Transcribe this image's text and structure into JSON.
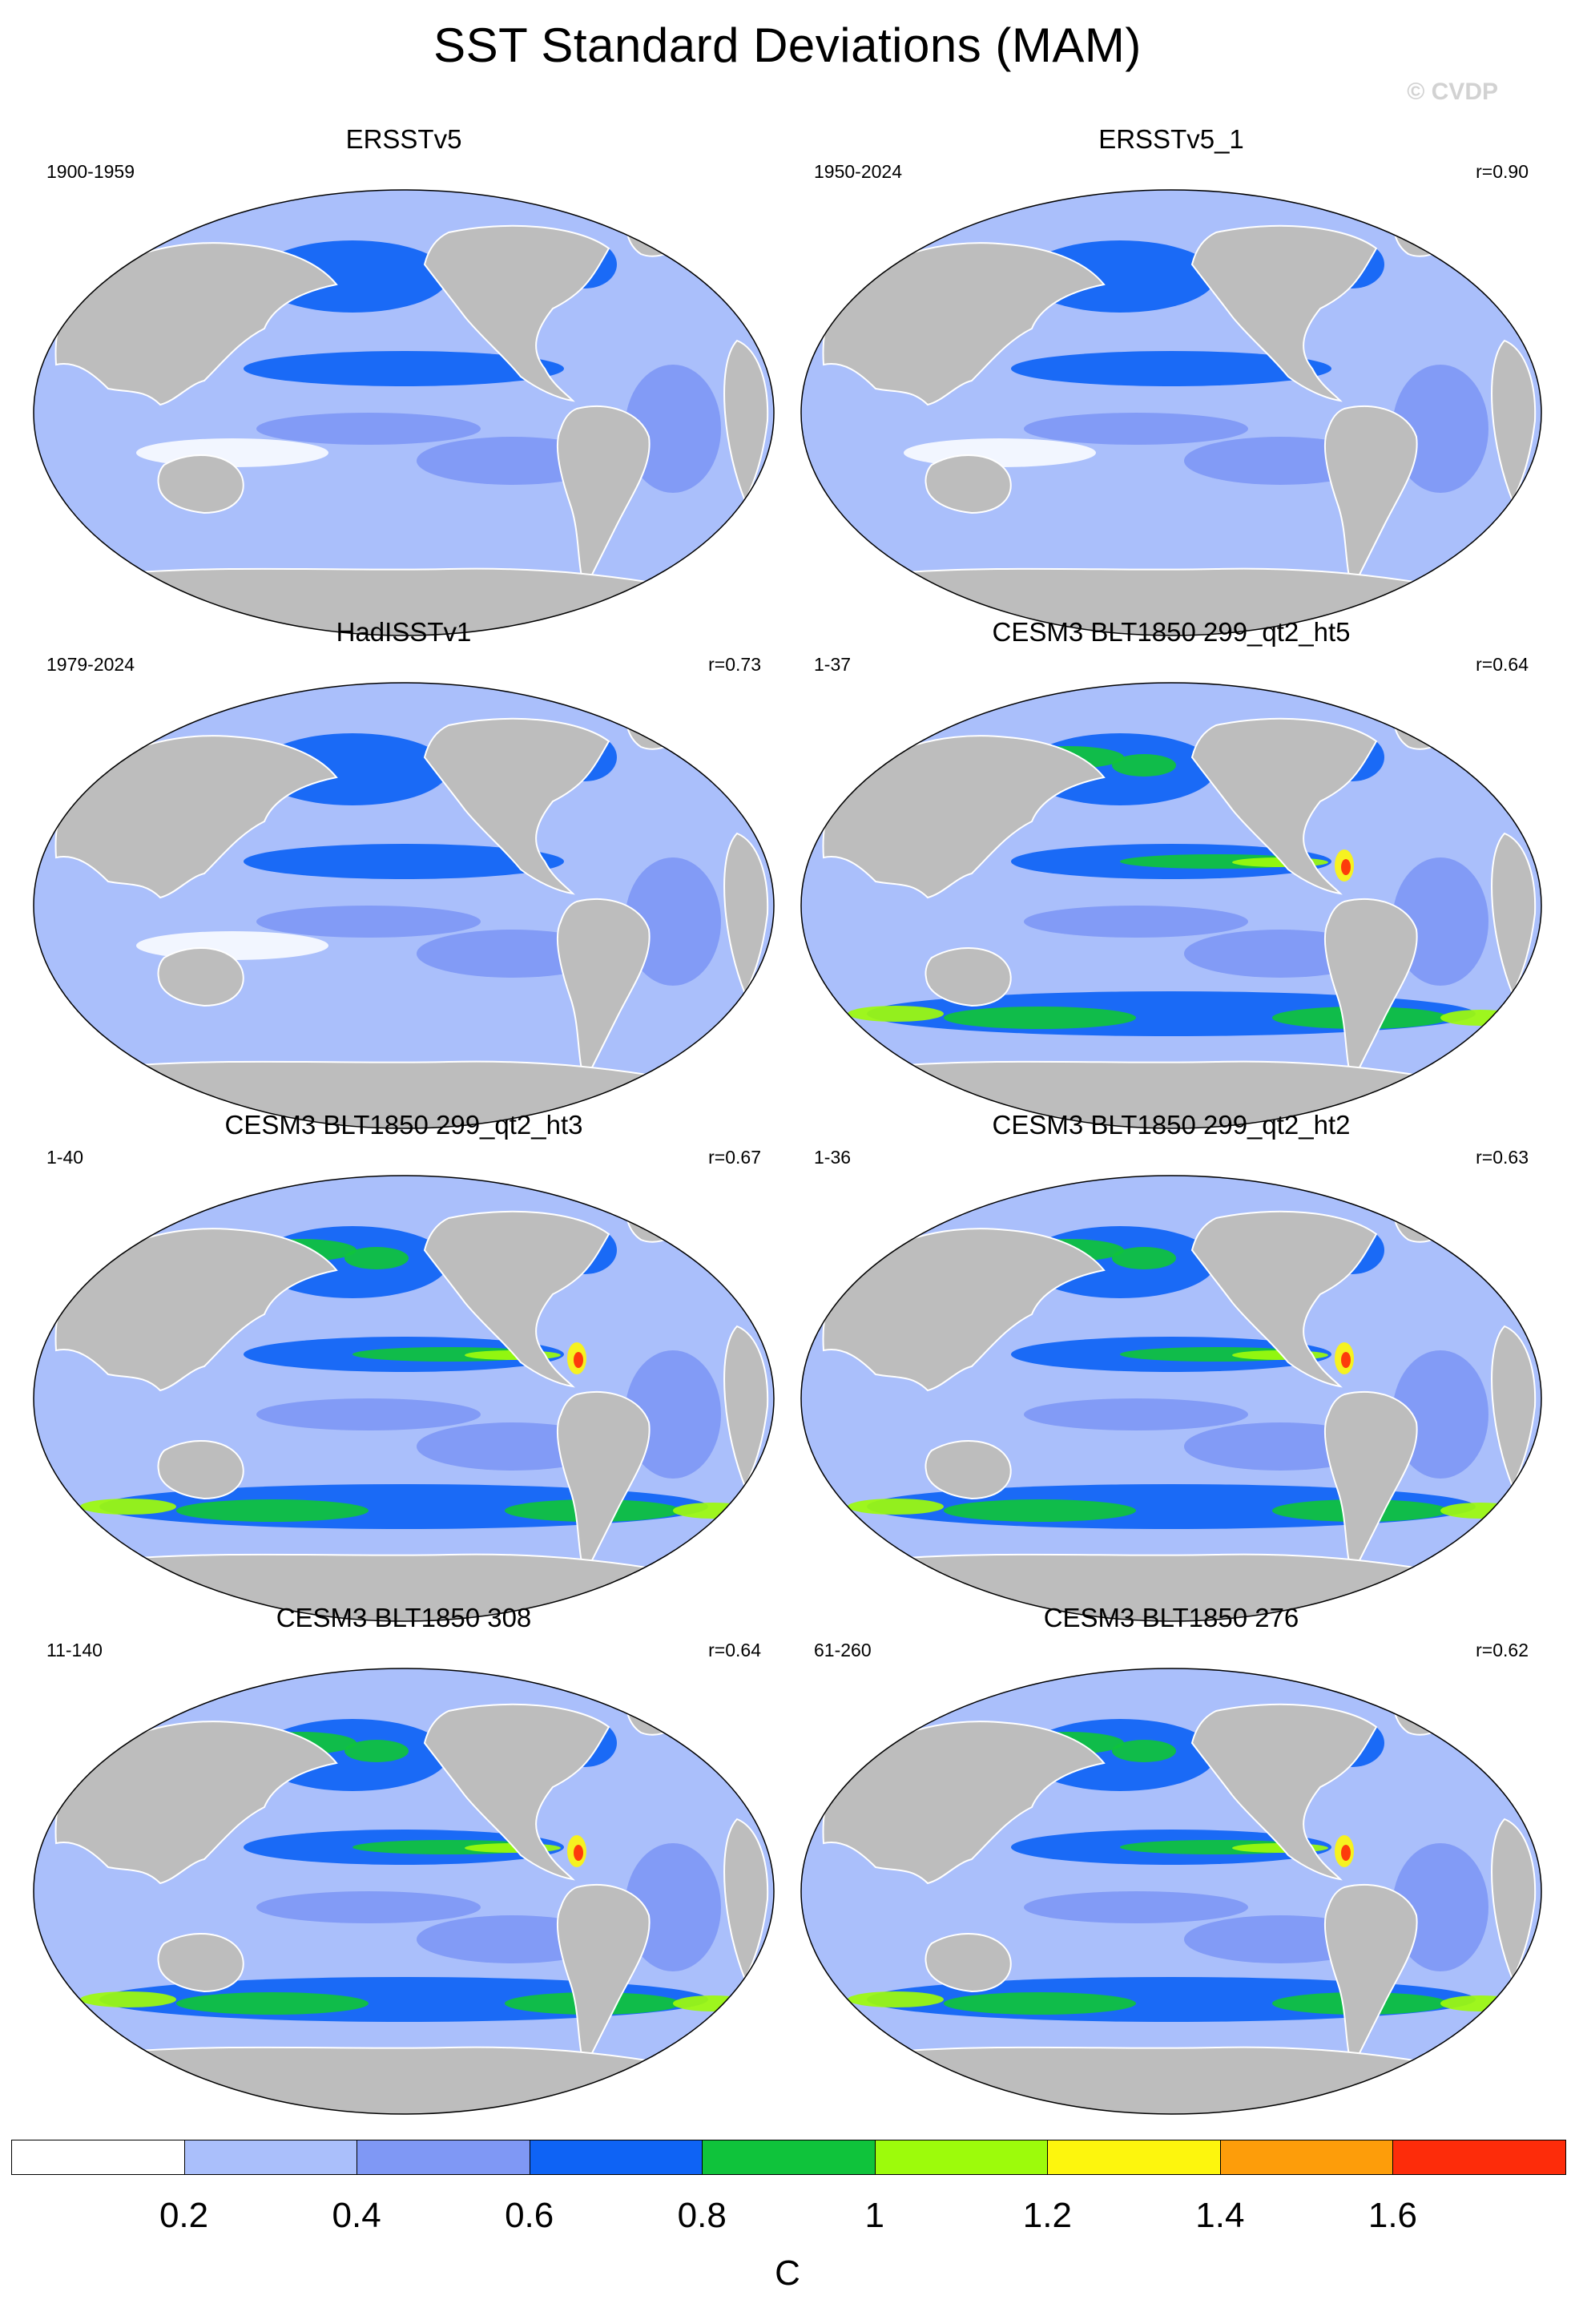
{
  "title": "SST Standard Deviations (MAM)",
  "watermark": "© CVDP",
  "panels": [
    {
      "title": "ERSSTv5",
      "years": "1900-1959",
      "r": "",
      "intensity": 0.15
    },
    {
      "title": "ERSSTv5_1",
      "years": "1950-2024",
      "r": "r=0.90",
      "intensity": 0.1
    },
    {
      "title": "HadISSTv1",
      "years": "1979-2024",
      "r": "r=0.73",
      "intensity": 0.05
    },
    {
      "title": "CESM3 BLT1850 299_qt2_ht5",
      "years": "1-37",
      "r": "r=0.64",
      "intensity": 0.85
    },
    {
      "title": "CESM3 BLT1850 299_qt2_ht3",
      "years": "1-40",
      "r": "r=0.67",
      "intensity": 0.9
    },
    {
      "title": "CESM3 BLT1850 299_qt2_ht2",
      "years": "1-36",
      "r": "r=0.63",
      "intensity": 0.8
    },
    {
      "title": "CESM3 BLT1850 308",
      "years": "11-140",
      "r": "r=0.64",
      "intensity": 1.0
    },
    {
      "title": "CESM3 BLT1850 276",
      "years": "61-260",
      "r": "r=0.62",
      "intensity": 1.0
    }
  ],
  "colorbar": {
    "colors": [
      "#ffffff",
      "#aabffb",
      "#7f98f5",
      "#0e63f5",
      "#0fc33b",
      "#9dfb0b",
      "#fdf60d",
      "#fd9d0a",
      "#fd2c0a"
    ],
    "ticks": [
      "0.2",
      "0.4",
      "0.6",
      "0.8",
      "1",
      "1.2",
      "1.4",
      "1.6"
    ],
    "units": "C"
  },
  "colors": {
    "land": "#bdbdbd",
    "coast": "#ffffff",
    "base_ocean": "#aabffb"
  }
}
